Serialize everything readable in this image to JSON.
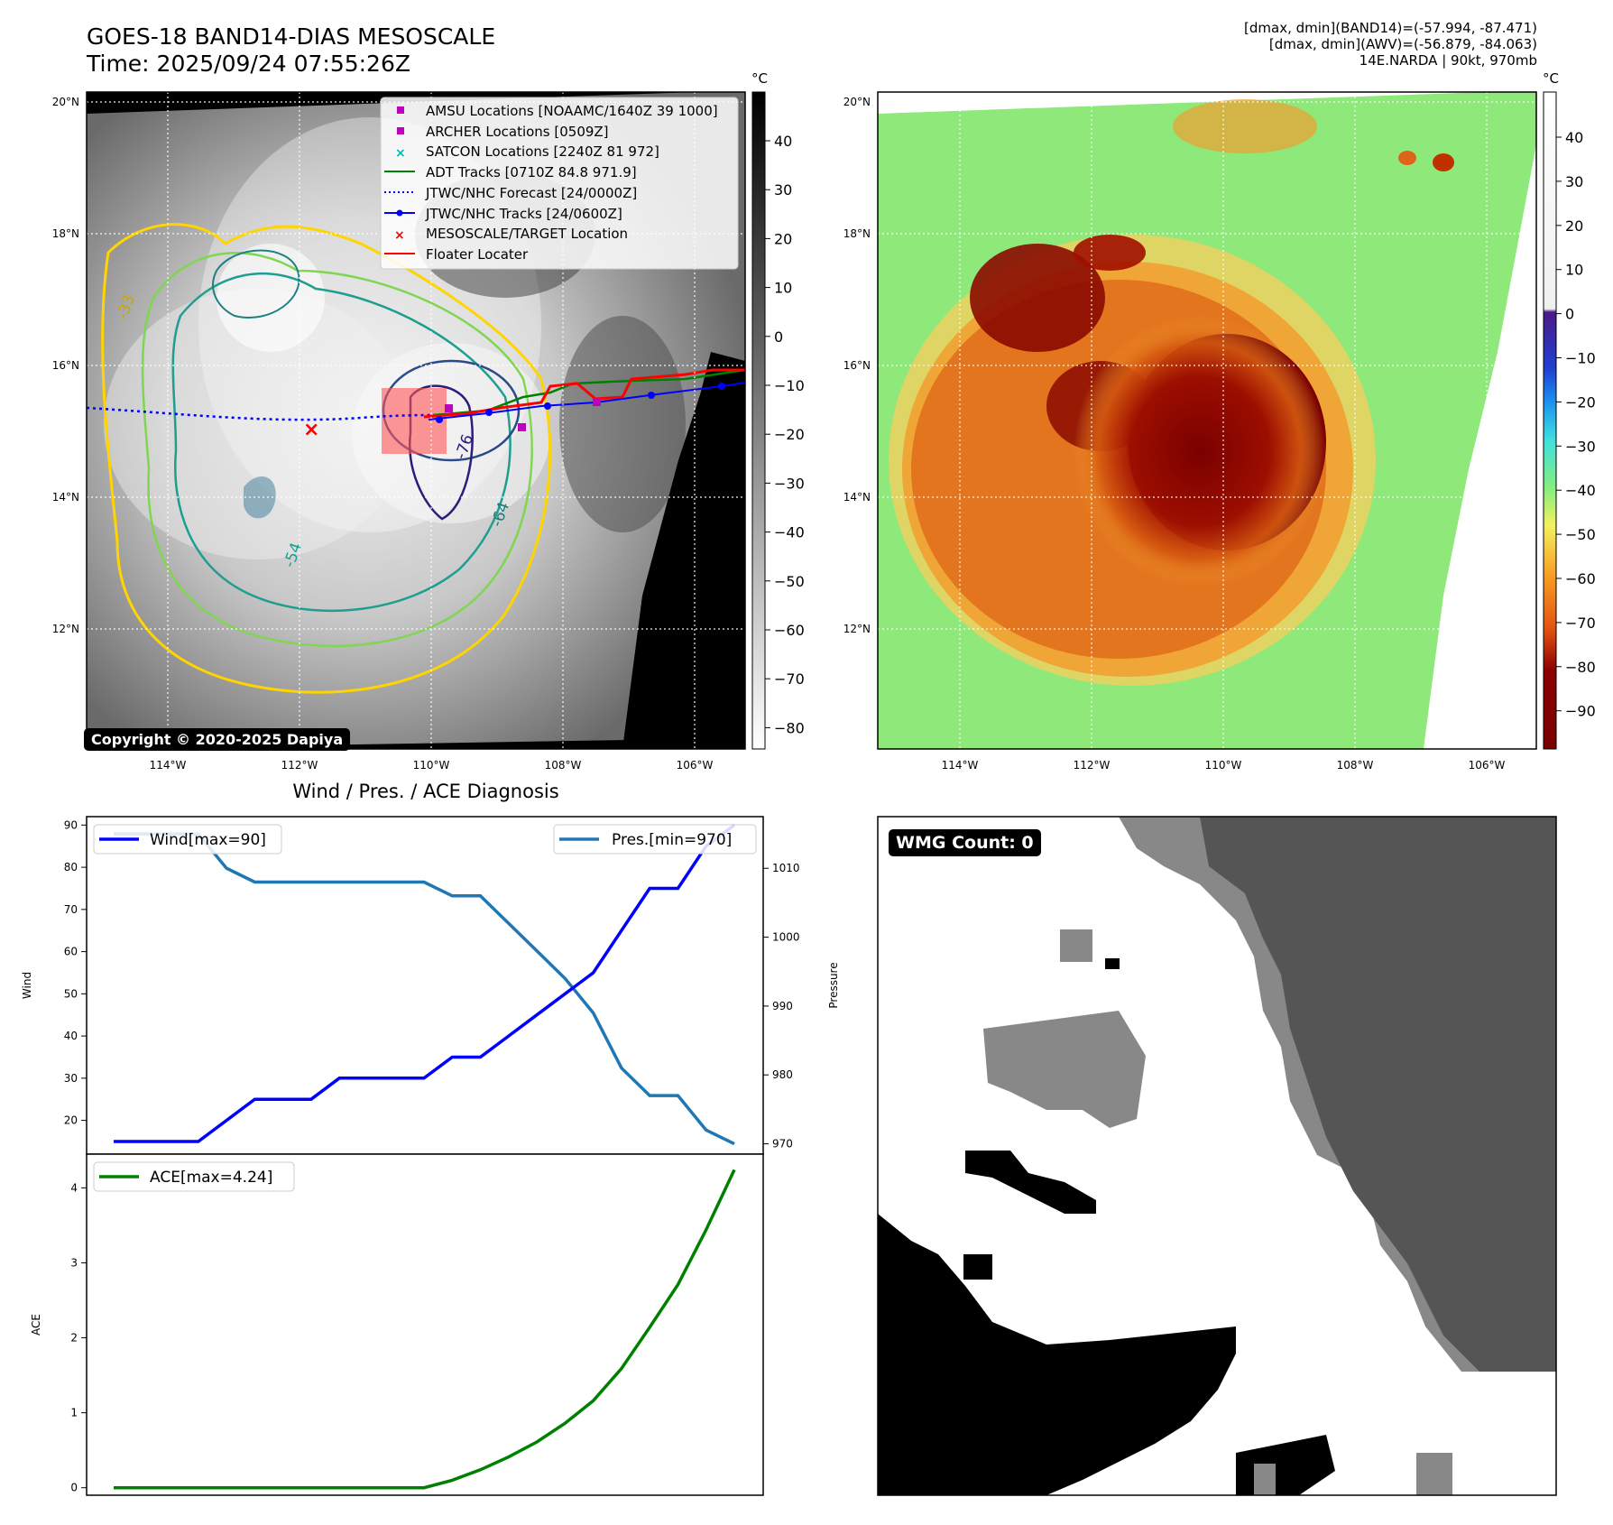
{
  "header": {
    "title_line1": "GOES-18 BAND14-DIAS MESOSCALE",
    "title_line2": "Time: 2025/09/24 07:55:26Z",
    "info_line1": "[dmax, dmin](BAND14)=(-57.994, -87.471)",
    "info_line2": "[dmax, dmin](AWV)=(-56.879, -84.063)",
    "info_line3": "14E.NARDA | 90kt, 970mb"
  },
  "map_axes": {
    "lat_labels": [
      "20°N",
      "18°N",
      "16°N",
      "14°N",
      "12°N"
    ],
    "lon_labels": [
      "114°W",
      "112°W",
      "110°W",
      "108°W",
      "106°W"
    ]
  },
  "colorbar_left": {
    "unit": "°C",
    "ticks": [
      "40",
      "30",
      "20",
      "10",
      "0",
      "−10",
      "−20",
      "−30",
      "−40",
      "−50",
      "−60",
      "−70",
      "−80"
    ]
  },
  "colorbar_right": {
    "unit": "°C",
    "ticks": [
      "40",
      "30",
      "20",
      "10",
      "0",
      "−10",
      "−20",
      "−30",
      "−40",
      "−50",
      "−60",
      "−70",
      "−80",
      "−90"
    ]
  },
  "legend_map": {
    "items": [
      {
        "label": "AMSU Locations [NOAAMC/1640Z 39 1000]",
        "color": "#c000c0",
        "marker": "square"
      },
      {
        "label": "ARCHER Locations [0509Z]",
        "color": "#c000c0",
        "marker": "square"
      },
      {
        "label": "SATCON Locations [2240Z 81 972]",
        "color": "#00b8b8",
        "marker": "x"
      },
      {
        "label": "ADT Tracks [0710Z 84.8 971.9]",
        "color": "#008000",
        "marker": "line"
      },
      {
        "label": "JTWC/NHC Forecast [24/0000Z]",
        "color": "#0000ff",
        "marker": "dotted"
      },
      {
        "label": "JTWC/NHC Tracks [24/0600Z]",
        "color": "#0000ff",
        "marker": "dotline"
      },
      {
        "label": "MESOSCALE/TARGET Location",
        "color": "#ff0000",
        "marker": "x"
      },
      {
        "label": "Floater Locater",
        "color": "#ff0000",
        "marker": "line"
      }
    ]
  },
  "contour_labels": [
    "-76",
    "-64",
    "-54",
    "-33"
  ],
  "copyright": "Copyright © 2020-2025 Dapiya",
  "diag_title": "Wind / Pres. / ACE Diagnosis",
  "wmg_label": "WMG Count: 0",
  "colors": {
    "wind": "#0000ff",
    "pressure": "#1f77b4",
    "ace": "#008000"
  },
  "chart_data": [
    {
      "type": "line",
      "title": "Wind / Pres. / ACE Diagnosis",
      "ylabel": "Wind",
      "ylabel_right": "Pressure",
      "ylim": [
        12,
        92
      ],
      "ylim_right": [
        968.5,
        1017.5
      ],
      "yticks": [
        20,
        30,
        40,
        50,
        60,
        70,
        80,
        90
      ],
      "yticks_right": [
        970,
        980,
        990,
        1000,
        1010
      ],
      "x": [
        0,
        1,
        2,
        3,
        4,
        5,
        6,
        7,
        8,
        9,
        10,
        11,
        12,
        13,
        14,
        15,
        16,
        17,
        18,
        19,
        20,
        21,
        22
      ],
      "series": [
        {
          "name": "Wind[max=90]",
          "axis": "left",
          "values": [
            15,
            15,
            15,
            15,
            20,
            25,
            25,
            25,
            30,
            30,
            30,
            30,
            35,
            35,
            40,
            45,
            50,
            55,
            65,
            75,
            75,
            85,
            90
          ]
        },
        {
          "name": "Pres.[min=970]",
          "axis": "right",
          "values": [
            1015,
            1015,
            1015,
            1015,
            1010,
            1008,
            1008,
            1008,
            1008,
            1008,
            1008,
            1008,
            1006,
            1006,
            1002,
            998,
            994,
            989,
            981,
            977,
            977,
            972,
            970
          ]
        }
      ]
    },
    {
      "type": "line",
      "ylabel": "ACE",
      "ylim": [
        -0.1,
        4.45
      ],
      "yticks": [
        0,
        1,
        2,
        3,
        4
      ],
      "x": [
        0,
        1,
        2,
        3,
        4,
        5,
        6,
        7,
        8,
        9,
        10,
        11,
        12,
        13,
        14,
        15,
        16,
        17,
        18,
        19,
        20,
        21,
        22
      ],
      "series": [
        {
          "name": "ACE[max=4.24]",
          "values": [
            0,
            0,
            0,
            0,
            0,
            0,
            0,
            0,
            0,
            0,
            0,
            0,
            0.1,
            0.24,
            0.41,
            0.61,
            0.86,
            1.16,
            1.59,
            2.14,
            2.71,
            3.44,
            4.24
          ]
        }
      ]
    }
  ]
}
